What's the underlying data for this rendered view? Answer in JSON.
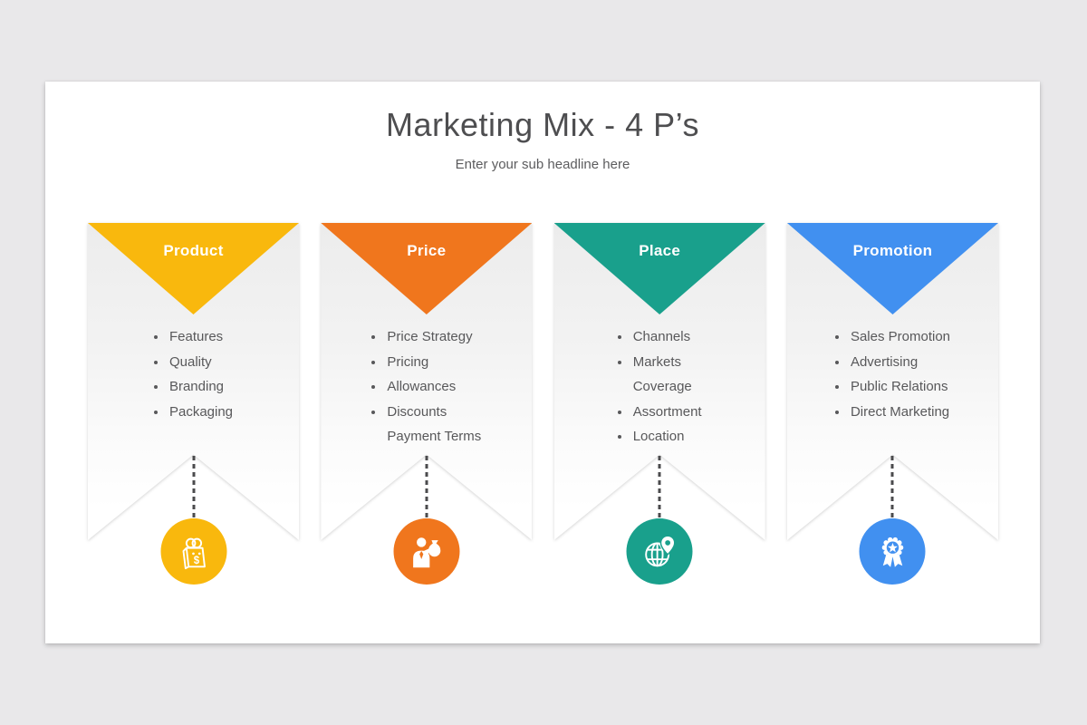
{
  "page": {
    "background_color": "#e9e8ea",
    "slide_background_color": "#ffffff"
  },
  "header": {
    "title": "Marketing Mix - 4 P’s",
    "subtitle": "Enter your sub headline here"
  },
  "colors": {
    "title_text": "#4e4e50",
    "body_text": "#58585a",
    "banner_label_text": "#ffffff"
  },
  "columns": [
    {
      "label": "Product",
      "color": "#F9B80D",
      "icon": "shopping-bag-dollar-icon",
      "items": [
        {
          "text": "Features",
          "bullet": true
        },
        {
          "text": "Quality",
          "bullet": true
        },
        {
          "text": "Branding",
          "bullet": true
        },
        {
          "text": "Packaging",
          "bullet": true
        }
      ]
    },
    {
      "label": "Price",
      "color": "#F0761D",
      "icon": "seller-moneybag-icon",
      "items": [
        {
          "text": "Price Strategy",
          "bullet": true
        },
        {
          "text": "Pricing",
          "bullet": true
        },
        {
          "text": "Allowances",
          "bullet": true
        },
        {
          "text": "Discounts",
          "bullet": true
        },
        {
          "text": "Payment Terms",
          "bullet": false
        }
      ]
    },
    {
      "label": "Place",
      "color": "#19A08C",
      "icon": "globe-location-pin-icon",
      "items": [
        {
          "text": "Channels",
          "bullet": true
        },
        {
          "text": "Markets",
          "bullet": true
        },
        {
          "text": "Coverage",
          "bullet": false
        },
        {
          "text": "Assortment",
          "bullet": true
        },
        {
          "text": "Location",
          "bullet": true
        }
      ]
    },
    {
      "label": "Promotion",
      "color": "#4190F0",
      "icon": "award-ribbon-icon",
      "items": [
        {
          "text": "Sales Promotion",
          "bullet": true
        },
        {
          "text": "Advertising",
          "bullet": true
        },
        {
          "text": "Public Relations",
          "bullet": true
        },
        {
          "text": "Direct Marketing",
          "bullet": true
        }
      ]
    }
  ]
}
